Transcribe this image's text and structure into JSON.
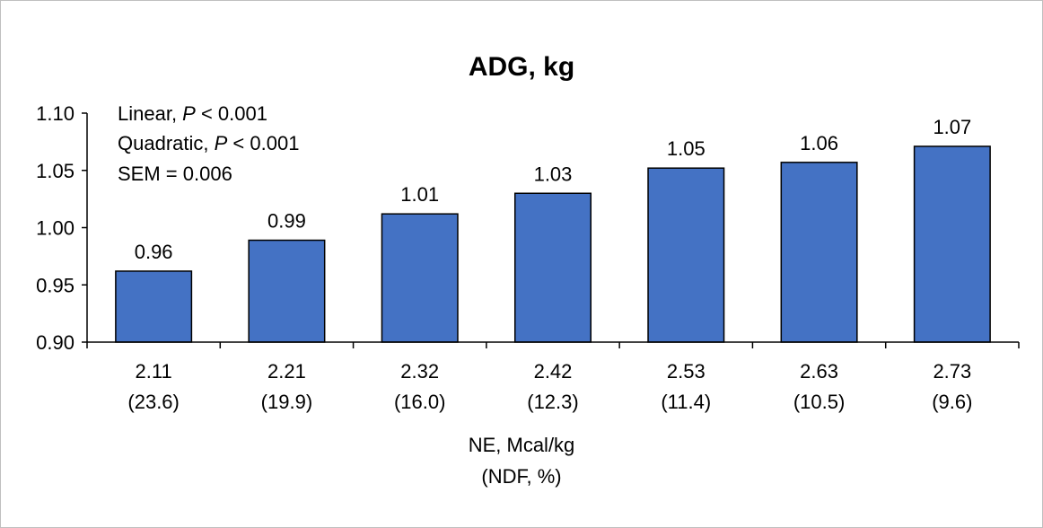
{
  "chart_data": {
    "type": "bar",
    "title": "ADG, kg",
    "xlabel_line1": "NE, Mcal/kg",
    "xlabel_line2": "(NDF, %)",
    "ylabel": "",
    "ylim": [
      0.9,
      1.1
    ],
    "yticks": [
      "0.90",
      "0.95",
      "1.00",
      "1.05",
      "1.10"
    ],
    "categories": [
      [
        "2.11",
        "(23.6)"
      ],
      [
        "2.21",
        "(19.9)"
      ],
      [
        "2.32",
        "(16.0)"
      ],
      [
        "2.42",
        "(12.3)"
      ],
      [
        "2.53",
        "(11.4)"
      ],
      [
        "2.63",
        "(10.5)"
      ],
      [
        "2.73",
        "(9.6)"
      ]
    ],
    "values": [
      0.962,
      0.989,
      1.012,
      1.03,
      1.052,
      1.057,
      1.071
    ],
    "data_labels": [
      "0.96",
      "0.99",
      "1.01",
      "1.03",
      "1.05",
      "1.06",
      "1.07"
    ],
    "bar_color": "#4472C4",
    "annotations": {
      "linear_prefix": "Linear, ",
      "linear_p": "P",
      "linear_suffix": " < 0.001",
      "quadratic_prefix": "Quadratic, ",
      "quadratic_p": "P",
      "quadratic_suffix": " < 0.001",
      "sem": "SEM = 0.006"
    },
    "grid": false,
    "legend": "none"
  }
}
